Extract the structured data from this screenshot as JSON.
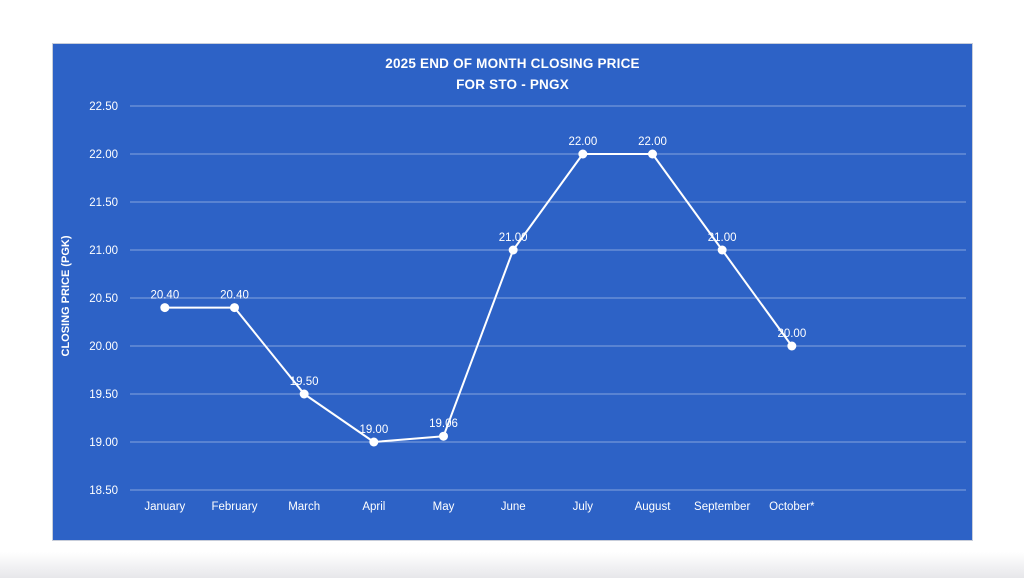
{
  "chart": {
    "title_line1": "2025 END OF MONTH CLOSING PRICE",
    "title_line2": "FOR STO - PNGX"
  },
  "chart_data": {
    "type": "line",
    "title": "2025 END OF MONTH CLOSING PRICE FOR STO - PNGX",
    "categories": [
      "January",
      "February",
      "March",
      "April",
      "May",
      "June",
      "July",
      "August",
      "September",
      "October*"
    ],
    "values": [
      20.4,
      20.4,
      19.5,
      19.0,
      19.06,
      21.0,
      22.0,
      22.0,
      21.0,
      20.0
    ],
    "data_labels": [
      "20.40",
      "20.40",
      "19.50",
      "19.00",
      "19.06",
      "21.00",
      "22.00",
      "22.00",
      "21.00",
      "20.00"
    ],
    "xlabel": "",
    "ylabel": "CLOSING PRICE (PGK)",
    "ylim": [
      18.5,
      22.5
    ],
    "ytick_step": 0.5,
    "yticks": [
      "22.50",
      "22.00",
      "21.50",
      "21.00",
      "20.50",
      "20.00",
      "19.50",
      "19.00",
      "18.50"
    ],
    "grid": true,
    "legend": false,
    "x_slots": 12,
    "marker": "circle",
    "colors": {
      "background": "#2d62c6",
      "line": "#ffffff",
      "marker": "#ffffff",
      "gridline": "rgba(255,255,255,0.42)",
      "text": "#ffffff",
      "page_background": "#ffffff",
      "box_border": "#c7cdda"
    }
  }
}
